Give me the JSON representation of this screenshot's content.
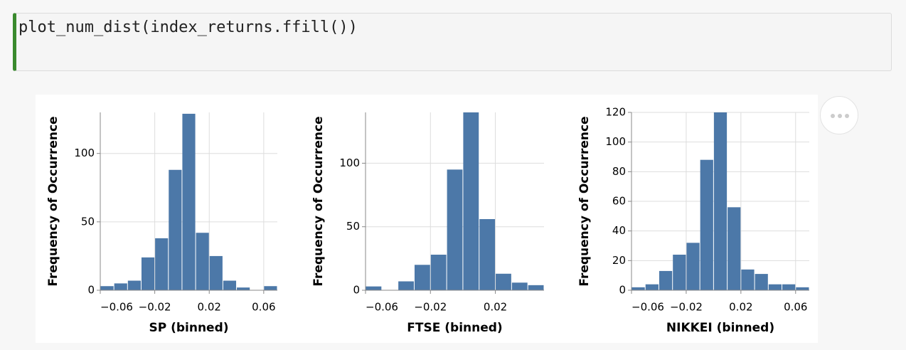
{
  "code": "plot_num_dist(index_returns.ffill())",
  "chart_data": [
    {
      "type": "histogram",
      "x_label": "SP (binned)",
      "y_label": "Frequency of Occurrence",
      "color": "#4c78a8",
      "grid": true,
      "bins": [
        -0.06,
        -0.05,
        -0.04,
        -0.03,
        -0.02,
        -0.01,
        0,
        0.01,
        0.02,
        0.03,
        0.04,
        0.05,
        0.06,
        0.07
      ],
      "values": [
        3,
        5,
        7,
        24,
        38,
        88,
        129,
        42,
        25,
        7,
        2,
        0,
        3
      ],
      "xlim": [
        -0.06,
        0.07
      ],
      "xticks": [
        {
          "value": -0.06,
          "label": "−0.06"
        },
        {
          "value": -0.02,
          "label": "−0.02"
        },
        0.02,
        0.06
      ],
      "ylim": [
        0,
        130
      ],
      "yticks": [
        0,
        50,
        100
      ]
    },
    {
      "type": "histogram",
      "x_label": "FTSE (binned)",
      "y_label": "Frequency of Occurrence",
      "color": "#4c78a8",
      "grid": true,
      "bins": [
        -0.06,
        -0.05,
        -0.04,
        -0.03,
        -0.02,
        -0.01,
        0,
        0.01,
        0.02,
        0.03,
        0.04,
        0.05
      ],
      "values": [
        3,
        0,
        7,
        20,
        28,
        95,
        140,
        56,
        13,
        6,
        4
      ],
      "xlim": [
        -0.06,
        0.05
      ],
      "xticks": [
        {
          "value": -0.06,
          "label": "−0.06"
        },
        {
          "value": -0.02,
          "label": "−0.02"
        },
        0.02
      ],
      "ylim": [
        0,
        140
      ],
      "yticks": [
        0,
        50,
        100
      ]
    },
    {
      "type": "histogram",
      "x_label": "NIKKEI (binned)",
      "y_label": "Frequency of Occurrence",
      "color": "#4c78a8",
      "grid": true,
      "bins": [
        -0.06,
        -0.05,
        -0.04,
        -0.03,
        -0.02,
        -0.01,
        0,
        0.01,
        0.02,
        0.03,
        0.04,
        0.05,
        0.06,
        0.07
      ],
      "values": [
        2,
        4,
        13,
        24,
        32,
        88,
        120,
        56,
        14,
        11,
        4,
        4,
        2
      ],
      "xlim": [
        -0.06,
        0.07
      ],
      "xticks": [
        {
          "value": -0.06,
          "label": "−0.06"
        },
        {
          "value": -0.02,
          "label": "−0.02"
        },
        0.02,
        0.06
      ],
      "ylim": [
        0,
        120
      ],
      "yticks": [
        0,
        20,
        40,
        60,
        80,
        100,
        120
      ]
    }
  ]
}
